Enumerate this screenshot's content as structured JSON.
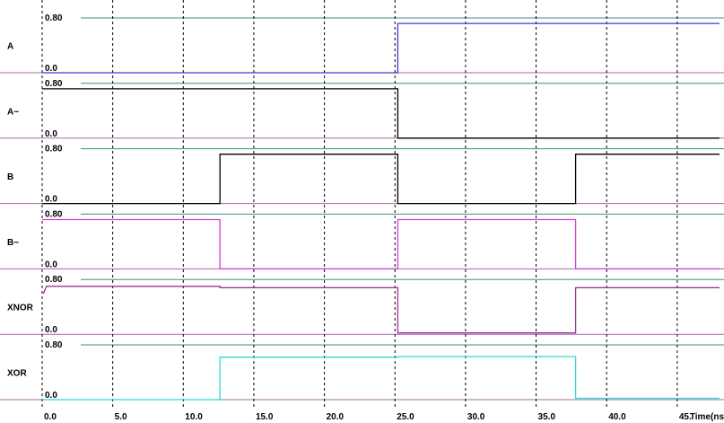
{
  "chart_data": {
    "type": "line",
    "title": "",
    "xlabel": "Time(ns)",
    "ylabel": "",
    "xlim": [
      0,
      48
    ],
    "ylim": [
      0,
      0.8
    ],
    "grid": true,
    "x_ticks": [
      "0.0",
      "5.0",
      "10.0",
      "15.0",
      "20.0",
      "25.0",
      "30.0",
      "35.0",
      "40.0",
      "45."
    ],
    "x_tick_values": [
      0,
      5,
      10,
      15,
      20,
      25,
      30,
      35,
      40,
      45
    ],
    "level_labels": {
      "high": "0.80",
      "low": "0.0"
    },
    "series": [
      {
        "name": "A",
        "color": "#3a3ad6",
        "points": [
          [
            0,
            0.0
          ],
          [
            25.2,
            0.0
          ],
          [
            25.2,
            0.72
          ],
          [
            48,
            0.72
          ]
        ]
      },
      {
        "name": "A~",
        "color": "#000000",
        "points": [
          [
            0,
            0.72
          ],
          [
            25.2,
            0.72
          ],
          [
            25.2,
            0.0
          ],
          [
            48,
            0.0
          ]
        ]
      },
      {
        "name": "B",
        "color": "#000000",
        "points": [
          [
            0,
            0.0
          ],
          [
            12.6,
            0.0
          ],
          [
            12.6,
            0.72
          ],
          [
            25.2,
            0.72
          ],
          [
            25.2,
            0.0
          ],
          [
            37.8,
            0.0
          ],
          [
            37.8,
            0.72
          ],
          [
            48,
            0.72
          ]
        ]
      },
      {
        "name": "B~",
        "color": "#d23cd2",
        "points": [
          [
            0,
            0.72
          ],
          [
            12.6,
            0.72
          ],
          [
            12.6,
            0.0
          ],
          [
            25.2,
            0.0
          ],
          [
            25.2,
            0.72
          ],
          [
            37.8,
            0.72
          ],
          [
            37.8,
            0.0
          ],
          [
            48,
            0.0
          ]
        ]
      },
      {
        "name": "XNOR",
        "color": "#a0309a",
        "points": [
          [
            0,
            0.6
          ],
          [
            0.1,
            0.6
          ],
          [
            0.3,
            0.7
          ],
          [
            12.6,
            0.7
          ],
          [
            12.6,
            0.68
          ],
          [
            25.2,
            0.68
          ],
          [
            25.2,
            0.02
          ],
          [
            37.8,
            0.02
          ],
          [
            37.8,
            0.68
          ],
          [
            48,
            0.68
          ]
        ]
      },
      {
        "name": "XOR",
        "color": "#33d6d6",
        "points": [
          [
            0,
            0.0
          ],
          [
            12.6,
            0.0
          ],
          [
            12.6,
            0.62
          ],
          [
            25.2,
            0.62
          ],
          [
            25.2,
            0.63
          ],
          [
            37.8,
            0.63
          ],
          [
            37.8,
            0.02
          ],
          [
            48,
            0.02
          ]
        ]
      }
    ]
  },
  "colors": {
    "high_rail": "#3a8f86",
    "low_rail": "#a56aa8",
    "grid": "#000000"
  }
}
